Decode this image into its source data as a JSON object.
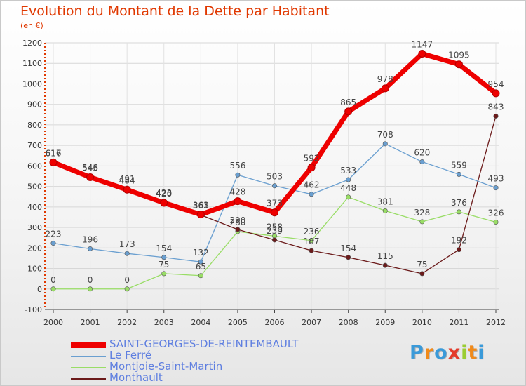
{
  "chart_data": {
    "type": "line",
    "title": "Evolution du Montant de la Dette par Habitant",
    "subtitle": "(en €)",
    "x": [
      "2000",
      "2001",
      "2002",
      "2003",
      "2004",
      "2005",
      "2006",
      "2007",
      "2008",
      "2009",
      "2010",
      "2011",
      "2012"
    ],
    "ylim": [
      -100,
      1200
    ],
    "yticks": [
      -100,
      0,
      100,
      200,
      300,
      400,
      500,
      600,
      700,
      800,
      900,
      1000,
      1100,
      1200
    ],
    "grid": true,
    "legend_position": "bottom-left",
    "series": [
      {
        "name": "SAINT-GEORGES-DE-REINTEMBAULT",
        "color": "#ee0000",
        "values": [
          617,
          545,
          484,
          420,
          363,
          428,
          373,
          592,
          865,
          978,
          1147,
          1095,
          954
        ]
      },
      {
        "name": "Le Ferré",
        "color": "#6a9fd0",
        "values": [
          223,
          196,
          173,
          154,
          132,
          556,
          503,
          462,
          533,
          708,
          620,
          559,
          493
        ]
      },
      {
        "name": "Montjoie-Saint-Martin",
        "color": "#99dd66",
        "values": [
          0,
          0,
          0,
          75,
          65,
          280,
          258,
          236,
          448,
          381,
          328,
          376,
          326
        ]
      },
      {
        "name": "Monthault",
        "color": "#6b1a1a",
        "values": [
          616,
          546,
          491,
          423,
          361,
          290,
          239,
          187,
          154,
          115,
          75,
          192,
          843
        ]
      }
    ]
  },
  "logo": {
    "letters": [
      "P",
      "r",
      "o",
      "x",
      "i",
      "t",
      "i"
    ],
    "colors": [
      "#3a9ad9",
      "#f08a1a",
      "#3a9ad9",
      "#e43b2b",
      "#9acd32",
      "#f08a1a",
      "#3a9ad9"
    ]
  }
}
